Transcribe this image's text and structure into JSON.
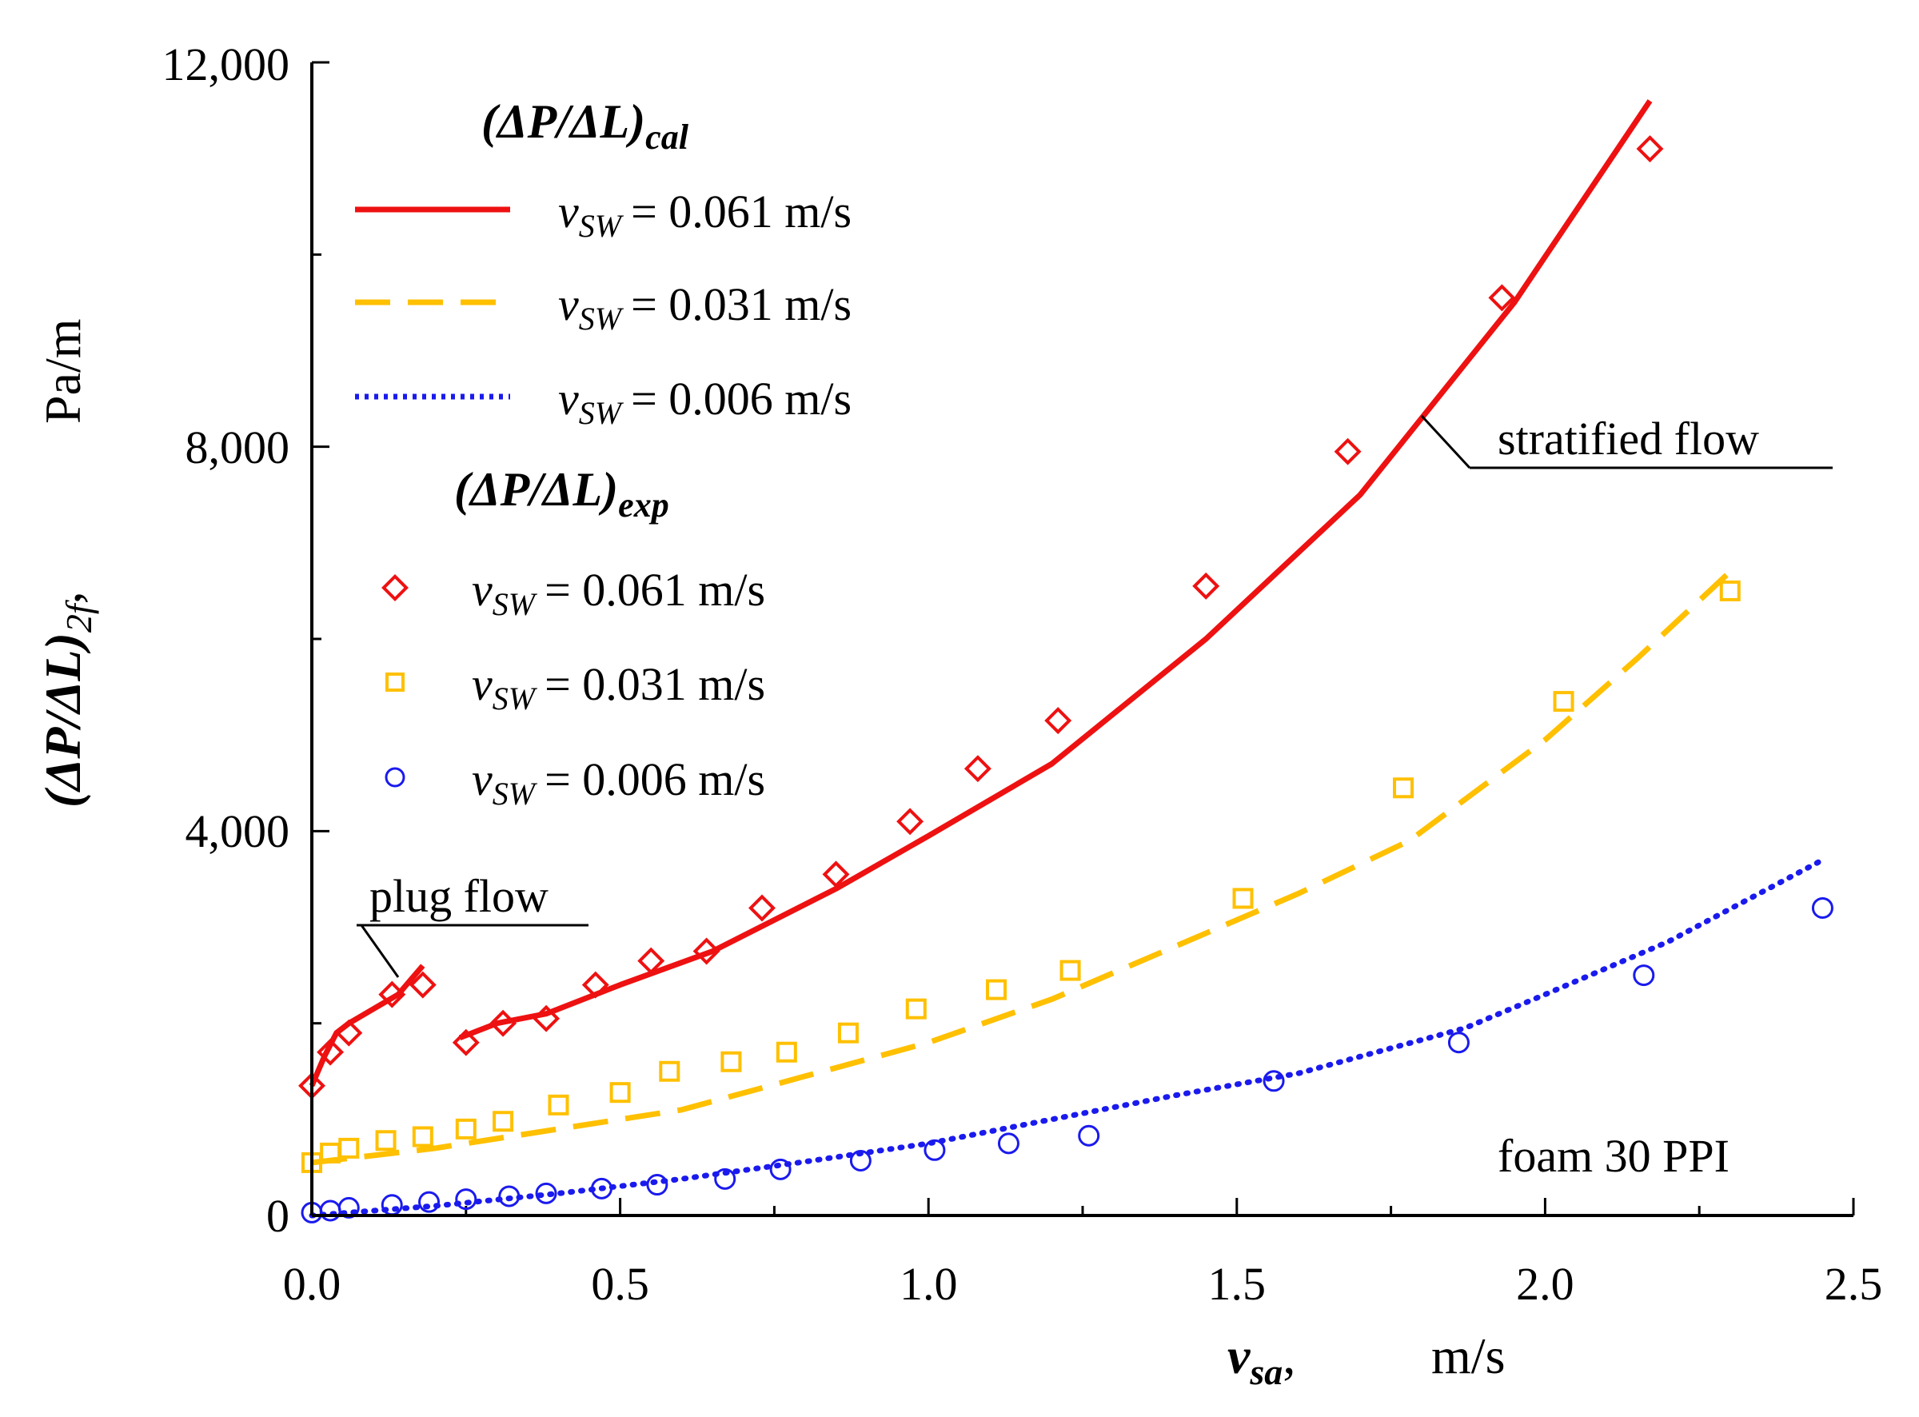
{
  "chart_data": {
    "type": "line",
    "xlabel": {
      "symbol": "v",
      "subscript": "sa",
      "comma": ",",
      "unit": "m/s"
    },
    "ylabel": {
      "symbol": "(ΔP/ΔL)",
      "subscript": "2f",
      "comma": ",",
      "unit": "Pa/m"
    },
    "xlim": [
      0,
      2.5
    ],
    "ylim": [
      0,
      12000
    ],
    "x_ticks": [
      0.0,
      0.5,
      1.0,
      1.5,
      2.0,
      2.5
    ],
    "x_tick_labels": [
      "0.0",
      "0.5",
      "1.0",
      "1.5",
      "2.0",
      "2.5"
    ],
    "y_ticks": [
      0,
      4000,
      8000,
      12000
    ],
    "y_tick_labels": [
      "0",
      "4,000",
      "8,000",
      "12,000"
    ],
    "legend": {
      "cal_heading": {
        "main": "(ΔP/ΔL)",
        "sub": "cal"
      },
      "exp_heading": {
        "main": "(ΔP/ΔL)",
        "sub": "exp"
      },
      "var_symbol": "v",
      "var_subscript": "SW",
      "position": "top-left"
    },
    "annotations": {
      "plug_flow": "plug flow",
      "stratified_flow": "stratified flow",
      "foam": "foam 30 PPI"
    },
    "calculated": [
      {
        "name": "v_sw = 0.061 m/s",
        "value_label": "= 0.061 m/s",
        "color": "#ee1111",
        "style": "solid",
        "segments": [
          [
            [
              0.0,
              1350
            ],
            [
              0.02,
              1650
            ],
            [
              0.04,
              1900
            ],
            [
              0.06,
              2000
            ],
            [
              0.1,
              2150
            ],
            [
              0.14,
              2300
            ],
            [
              0.18,
              2600
            ]
          ],
          [
            [
              0.24,
              1850
            ],
            [
              0.3,
              2000
            ],
            [
              0.38,
              2100
            ],
            [
              0.5,
              2400
            ],
            [
              0.65,
              2750
            ],
            [
              0.85,
              3400
            ],
            [
              1.0,
              3950
            ],
            [
              1.2,
              4700
            ],
            [
              1.45,
              6000
            ],
            [
              1.7,
              7500
            ],
            [
              1.95,
              9500
            ],
            [
              2.17,
              11600
            ]
          ]
        ]
      },
      {
        "name": "v_sw = 0.031 m/s",
        "value_label": "= 0.031 m/s",
        "color": "#ffc000",
        "style": "dashed",
        "segments": [
          [
            [
              0.0,
              550
            ],
            [
              0.2,
              700
            ],
            [
              0.4,
              900
            ],
            [
              0.6,
              1100
            ],
            [
              0.8,
              1450
            ],
            [
              1.0,
              1800
            ],
            [
              1.2,
              2250
            ],
            [
              1.4,
              2800
            ],
            [
              1.6,
              3350
            ],
            [
              1.78,
              3900
            ],
            [
              2.0,
              4950
            ],
            [
              2.15,
              5800
            ],
            [
              2.3,
              6700
            ]
          ]
        ]
      },
      {
        "name": "v_sw = 0.006 m/s",
        "value_label": "= 0.006 m/s",
        "color": "#1a1aee",
        "style": "dotted",
        "segments": [
          [
            [
              0.0,
              0
            ],
            [
              0.2,
              100
            ],
            [
              0.4,
              230
            ],
            [
              0.6,
              380
            ],
            [
              0.8,
              560
            ],
            [
              1.0,
              750
            ],
            [
              1.2,
              1000
            ],
            [
              1.4,
              1250
            ],
            [
              1.6,
              1480
            ],
            [
              1.87,
              1950
            ],
            [
              2.0,
              2300
            ],
            [
              2.2,
              2850
            ],
            [
              2.45,
              3700
            ]
          ]
        ]
      }
    ],
    "experimental": [
      {
        "name": "v_sw = 0.061 m/s",
        "value_label": "= 0.061 m/s",
        "color": "#ee1111",
        "marker": "diamond",
        "points": [
          [
            0.0,
            1350
          ],
          [
            0.03,
            1700
          ],
          [
            0.06,
            1900
          ],
          [
            0.13,
            2300
          ],
          [
            0.18,
            2400
          ],
          [
            0.25,
            1800
          ],
          [
            0.31,
            2000
          ],
          [
            0.38,
            2050
          ],
          [
            0.46,
            2400
          ],
          [
            0.55,
            2650
          ],
          [
            0.64,
            2750
          ],
          [
            0.73,
            3200
          ],
          [
            0.85,
            3550
          ],
          [
            0.97,
            4100
          ],
          [
            1.08,
            4650
          ],
          [
            1.21,
            5150
          ],
          [
            1.45,
            6550
          ],
          [
            1.68,
            7950
          ],
          [
            1.93,
            9550
          ],
          [
            2.17,
            11100
          ]
        ]
      },
      {
        "name": "v_sw = 0.031 m/s",
        "value_label": "= 0.031 m/s",
        "color": "#ffc000",
        "marker": "square",
        "points": [
          [
            0.0,
            550
          ],
          [
            0.03,
            650
          ],
          [
            0.06,
            700
          ],
          [
            0.12,
            780
          ],
          [
            0.18,
            820
          ],
          [
            0.25,
            900
          ],
          [
            0.31,
            980
          ],
          [
            0.4,
            1150
          ],
          [
            0.5,
            1280
          ],
          [
            0.58,
            1500
          ],
          [
            0.68,
            1600
          ],
          [
            0.77,
            1700
          ],
          [
            0.87,
            1900
          ],
          [
            0.98,
            2150
          ],
          [
            1.11,
            2350
          ],
          [
            1.23,
            2550
          ],
          [
            1.51,
            3300
          ],
          [
            1.77,
            4450
          ],
          [
            2.03,
            5350
          ],
          [
            2.3,
            6500
          ]
        ]
      },
      {
        "name": "v_sw = 0.006 m/s",
        "value_label": "= 0.006 m/s",
        "color": "#1a1aee",
        "marker": "circle",
        "points": [
          [
            0.0,
            30
          ],
          [
            0.03,
            50
          ],
          [
            0.06,
            80
          ],
          [
            0.13,
            110
          ],
          [
            0.19,
            140
          ],
          [
            0.25,
            170
          ],
          [
            0.32,
            200
          ],
          [
            0.38,
            230
          ],
          [
            0.47,
            280
          ],
          [
            0.56,
            320
          ],
          [
            0.67,
            380
          ],
          [
            0.76,
            480
          ],
          [
            0.89,
            570
          ],
          [
            1.01,
            680
          ],
          [
            1.13,
            750
          ],
          [
            1.26,
            830
          ],
          [
            1.56,
            1400
          ],
          [
            1.86,
            1800
          ],
          [
            2.16,
            2500
          ],
          [
            2.45,
            3200
          ]
        ]
      }
    ]
  }
}
